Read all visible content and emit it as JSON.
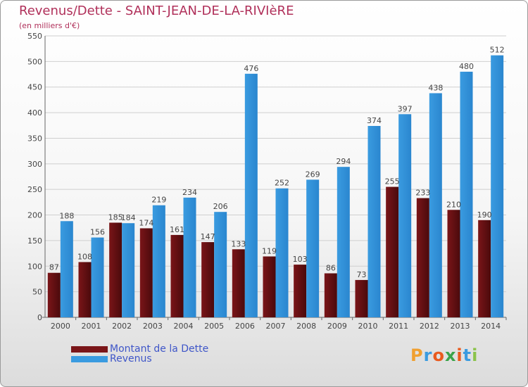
{
  "chart_data": {
    "type": "bar",
    "title": "Revenus/Dette - SAINT-JEAN-DE-LA-RIVIèRE",
    "subtitle": "(en milliers d'€)",
    "categories": [
      "2000",
      "2001",
      "2002",
      "2003",
      "2004",
      "2005",
      "2006",
      "2007",
      "2008",
      "2009",
      "2010",
      "2011",
      "2012",
      "2013",
      "2014"
    ],
    "series": [
      {
        "name": "Montant de la Dette",
        "color": "#7a1518",
        "values": [
          87,
          108,
          185,
          174,
          161,
          147,
          133,
          119,
          103,
          86,
          73,
          255,
          233,
          210,
          190
        ]
      },
      {
        "name": "Revenus",
        "color": "#3a9be0",
        "values": [
          188,
          156,
          184,
          219,
          234,
          206,
          476,
          252,
          269,
          294,
          374,
          397,
          438,
          480,
          512
        ]
      }
    ],
    "ylim": [
      0,
      550
    ],
    "yticks": [
      0,
      50,
      100,
      150,
      200,
      250,
      300,
      350,
      400,
      450,
      500,
      550
    ],
    "grid": true,
    "legend_position": "bottom-left"
  },
  "branding": {
    "logo_letters": [
      "P",
      "r",
      "o",
      "x",
      "i",
      "t",
      "i"
    ],
    "logo_colors": [
      "#f0a030",
      "#3a9be0",
      "#e95a1e",
      "#3aa34a",
      "#e95a1e",
      "#3a9be0",
      "#8bc34a"
    ]
  }
}
